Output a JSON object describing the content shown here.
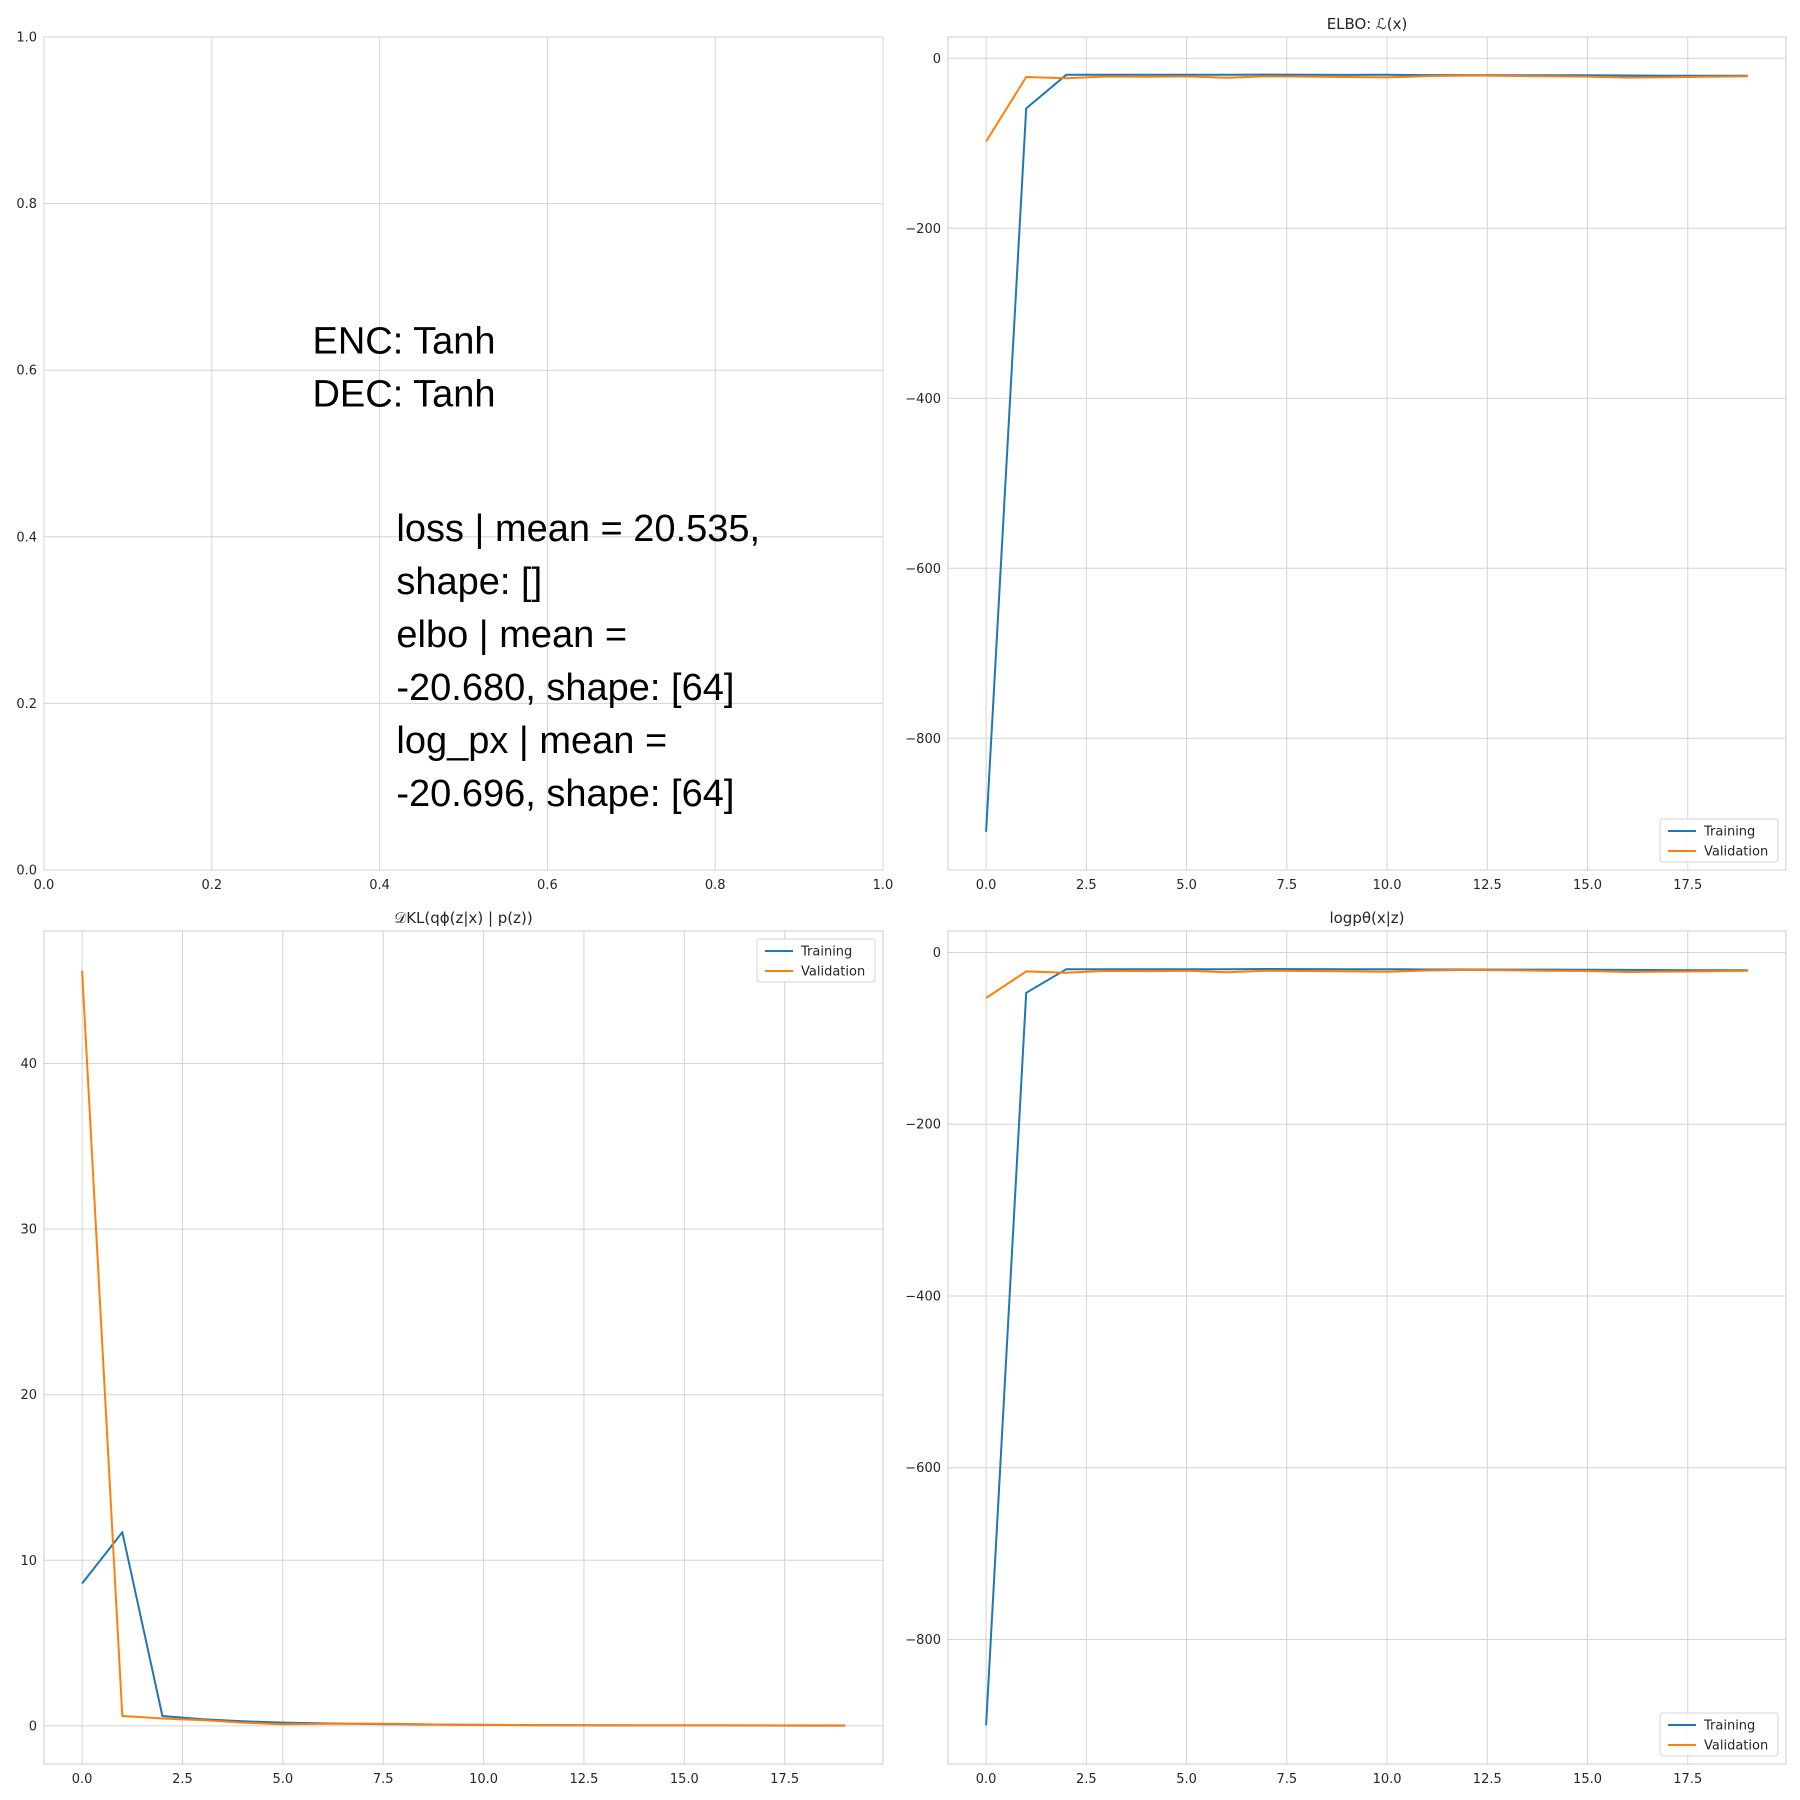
{
  "colors": {
    "training": "#1f77b4",
    "validation": "#ff7f0e"
  },
  "chart_data": [
    {
      "id": "text-panel",
      "type": "scatter",
      "title": "",
      "xlim": [
        0,
        1
      ],
      "ylim": [
        0,
        1
      ],
      "xticks": [
        0.0,
        0.2,
        0.4,
        0.6,
        0.8,
        1.0
      ],
      "yticks": [
        0.0,
        0.2,
        0.4,
        0.6,
        0.8,
        1.0
      ],
      "tick_decimals": 1,
      "grid": true,
      "legend": "none",
      "annotations": [
        {
          "x": 0.32,
          "y": 0.62,
          "lines": [
            "ENC: Tanh",
            "DEC: Tanh"
          ]
        },
        {
          "x": 0.42,
          "y": 0.395,
          "lines": [
            "loss   | mean =     20.535,",
            "shape: []",
            "elbo   | mean =",
            "-20.680, shape: [64]",
            "log_px | mean =",
            "-20.696, shape: [64]"
          ]
        }
      ],
      "series": []
    },
    {
      "id": "elbo-chart",
      "type": "line",
      "title": "ELBO: ℒ(x)",
      "xlim": [
        -0.95,
        19.95
      ],
      "ylim": [
        -955,
        25
      ],
      "xticks": [
        0.0,
        2.5,
        5.0,
        7.5,
        10.0,
        12.5,
        15.0,
        17.5
      ],
      "yticks": [
        0,
        -200,
        -400,
        -600,
        -800
      ],
      "tick_decimals": 1,
      "ytick_decimals": 0,
      "grid": true,
      "legend": "lower-right",
      "x": [
        0,
        1,
        2,
        3,
        4,
        5,
        6,
        7,
        8,
        9,
        10,
        11,
        12,
        13,
        14,
        15,
        16,
        17,
        18,
        19
      ],
      "series": [
        {
          "name": "Training",
          "color_key": "training",
          "values": [
            -910,
            -59,
            -19.5,
            -19.5,
            -19.5,
            -19.5,
            -19.5,
            -19.2,
            -19.4,
            -19.6,
            -19.5,
            -19.8,
            -19.8,
            -20.0,
            -20.0,
            -20.1,
            -20.3,
            -20.5,
            -20.6,
            -20.7
          ]
        },
        {
          "name": "Validation",
          "color_key": "validation",
          "values": [
            -98,
            -22,
            -23.5,
            -21.5,
            -21.8,
            -21.3,
            -23,
            -21.2,
            -21.6,
            -22,
            -22.5,
            -21,
            -20.3,
            -20.8,
            -21.2,
            -21.6,
            -22.8,
            -22.3,
            -21.8,
            -21.2
          ]
        }
      ]
    },
    {
      "id": "kl-chart",
      "type": "line",
      "title": "𝒟KL(qϕ(z|x) | p(z))",
      "xlim": [
        -0.95,
        19.95
      ],
      "ylim": [
        -2.3,
        48.0
      ],
      "xticks": [
        0.0,
        2.5,
        5.0,
        7.5,
        10.0,
        12.5,
        15.0,
        17.5
      ],
      "yticks": [
        0,
        10,
        20,
        30,
        40
      ],
      "tick_decimals": 1,
      "ytick_decimals": 0,
      "grid": true,
      "legend": "upper-right",
      "x": [
        0,
        1,
        2,
        3,
        4,
        5,
        6,
        7,
        8,
        9,
        10,
        11,
        12,
        13,
        14,
        15,
        16,
        17,
        18,
        19
      ],
      "series": [
        {
          "name": "Training",
          "color_key": "training",
          "values": [
            8.6,
            11.7,
            0.6,
            0.4,
            0.28,
            0.2,
            0.15,
            0.12,
            0.1,
            0.08,
            0.06,
            0.05,
            0.04,
            0.035,
            0.03,
            0.03,
            0.03,
            0.025,
            0.02,
            0.02
          ]
        },
        {
          "name": "Validation",
          "color_key": "validation",
          "values": [
            45.6,
            0.6,
            0.45,
            0.35,
            0.2,
            0.1,
            0.12,
            0.14,
            0.12,
            0.08,
            0.06,
            0.05,
            0.04,
            0.03,
            0.03,
            0.03,
            0.03,
            0.03,
            0.03,
            0.03
          ]
        }
      ]
    },
    {
      "id": "logpx-chart",
      "type": "line",
      "title": "logpθ(x|z)",
      "xlim": [
        -0.95,
        19.95
      ],
      "ylim": [
        -945,
        25
      ],
      "xticks": [
        0.0,
        2.5,
        5.0,
        7.5,
        10.0,
        12.5,
        15.0,
        17.5
      ],
      "yticks": [
        0,
        -200,
        -400,
        -600,
        -800
      ],
      "tick_decimals": 1,
      "ytick_decimals": 0,
      "grid": true,
      "legend": "lower-right",
      "x": [
        0,
        1,
        2,
        3,
        4,
        5,
        6,
        7,
        8,
        9,
        10,
        11,
        12,
        13,
        14,
        15,
        16,
        17,
        18,
        19
      ],
      "series": [
        {
          "name": "Training",
          "color_key": "training",
          "values": [
            -900,
            -47,
            -19.5,
            -19.5,
            -19.5,
            -19.5,
            -19.5,
            -19.2,
            -19.4,
            -19.6,
            -19.5,
            -19.8,
            -19.8,
            -20.0,
            -20.0,
            -20.1,
            -20.3,
            -20.5,
            -20.6,
            -20.7
          ]
        },
        {
          "name": "Validation",
          "color_key": "validation",
          "values": [
            -53,
            -22,
            -23.5,
            -21.5,
            -21.8,
            -21.3,
            -23,
            -21.2,
            -21.6,
            -22,
            -22.5,
            -21,
            -20.3,
            -20.8,
            -21.2,
            -21.6,
            -22.8,
            -22.3,
            -21.8,
            -21.2
          ]
        }
      ]
    }
  ]
}
